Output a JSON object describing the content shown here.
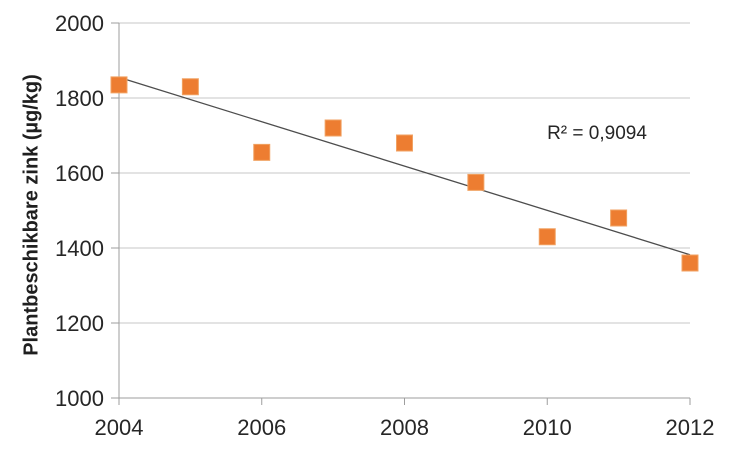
{
  "chart_data": {
    "type": "scatter",
    "title": "",
    "xlabel": "",
    "ylabel": "Plantbeschikbare zink (µg/kg)",
    "x": [
      2004,
      2005,
      2006,
      2007,
      2008,
      2009,
      2010,
      2011,
      2012
    ],
    "series": [
      {
        "name": "Plantbeschikbare zink",
        "values": [
          1835,
          1830,
          1655,
          1720,
          1680,
          1575,
          1430,
          1480,
          1360
        ],
        "color": "#ED7D31",
        "marker": "square"
      }
    ],
    "trendline": {
      "type": "linear",
      "x_start": 2004,
      "y_start": 1855,
      "x_end": 2012,
      "y_end": 1382,
      "color": "#4D4D4D"
    },
    "annotation": {
      "text": "R² = 0,9094"
    },
    "axes": {
      "y": {
        "min": 1000,
        "max": 2000,
        "tick_step": 200,
        "tick_labels": [
          "1000",
          "1200",
          "1400",
          "1600",
          "1800",
          "2000"
        ]
      },
      "x": {
        "min": 2004,
        "max": 2012,
        "tick_step": 2,
        "tick_labels": [
          "2004",
          "2006",
          "2008",
          "2010",
          "2012"
        ]
      }
    },
    "grid": {
      "horizontal": true,
      "vertical": false,
      "color": "#C7C7C7"
    },
    "axis_color": "#9E9E9E",
    "text_color": "#262626",
    "background": "#FFFFFF",
    "legend": "none"
  }
}
